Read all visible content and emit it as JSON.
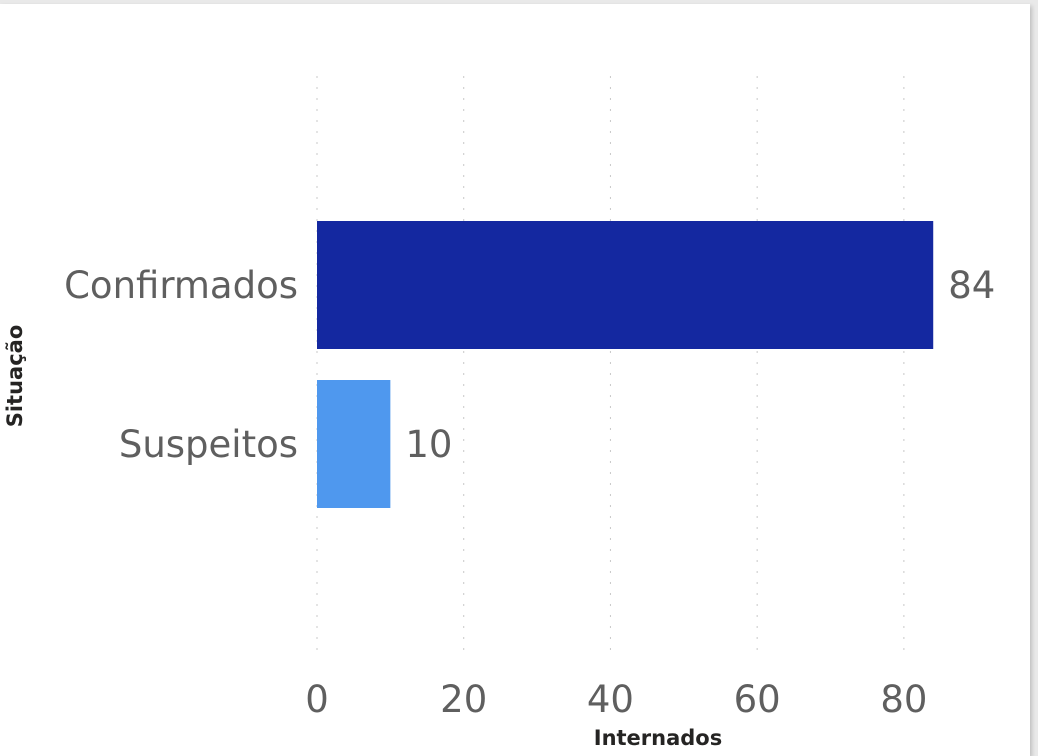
{
  "chart_data": {
    "type": "bar",
    "orientation": "horizontal",
    "categories": [
      "Confirmados",
      "Suspeitos"
    ],
    "values": [
      84,
      10
    ],
    "colors": [
      "#1428a0",
      "#4f98ee"
    ],
    "data_labels": [
      "84",
      "10"
    ],
    "xlabel": "Internados",
    "ylabel": "Situação",
    "xlim": [
      0,
      84
    ],
    "xticks": [
      0,
      20,
      40,
      60,
      80
    ],
    "gridlines": "vertical dashed",
    "legend": "none"
  }
}
